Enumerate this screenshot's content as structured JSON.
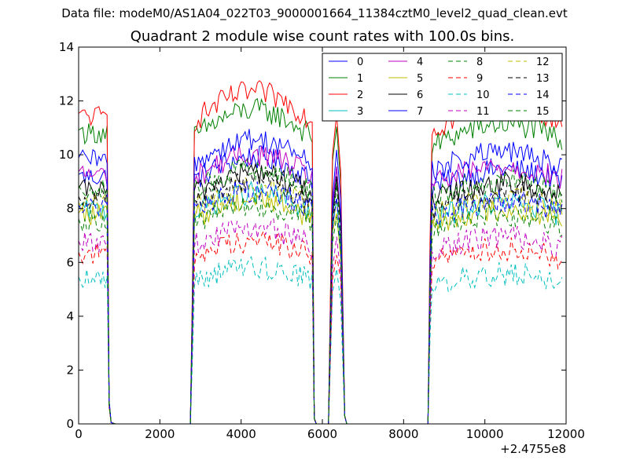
{
  "figure": {
    "suptitle": "Data file: modeM0/AS1A04_022T03_9000001664_11384cztM0_level2_quad_clean.evt"
  },
  "chart_data": {
    "type": "line",
    "title": "Quadrant 2 module wise count rates with 100.0s bins.",
    "xlabel": "",
    "ylabel": "",
    "x_offset_label": "+2.4755e8",
    "xlim": [
      0,
      12000
    ],
    "ylim": [
      0,
      14
    ],
    "xticks": [
      0,
      2000,
      4000,
      6000,
      8000,
      10000,
      12000
    ],
    "yticks": [
      0,
      2,
      4,
      6,
      8,
      10,
      12,
      14
    ],
    "grid": false,
    "legend_position": "top-right",
    "legend_columns": 4,
    "segments": [
      {
        "start": 0,
        "end": 800,
        "decay_to": 0.6
      },
      {
        "start": 2800,
        "end": 5800
      },
      {
        "start": 6200,
        "end": 6600
      },
      {
        "start": 8650,
        "end": 11900
      }
    ],
    "series": [
      {
        "name": "0",
        "color": "#0000ff",
        "dash": "solid",
        "level": 9.0
      },
      {
        "name": "1",
        "color": "#008000",
        "dash": "solid",
        "level": 10.6
      },
      {
        "name": "2",
        "color": "#ff0000",
        "dash": "solid",
        "level": 11.2
      },
      {
        "name": "3",
        "color": "#00bfbf",
        "dash": "solid",
        "level": 7.8
      },
      {
        "name": "4",
        "color": "#bf00bf",
        "dash": "solid",
        "level": 9.1
      },
      {
        "name": "5",
        "color": "#bfbf00",
        "dash": "solid",
        "level": 7.6
      },
      {
        "name": "6",
        "color": "#000000",
        "dash": "solid",
        "level": 8.5
      },
      {
        "name": "7",
        "color": "#0000ff",
        "dash": "solid",
        "level": 9.6
      },
      {
        "name": "8",
        "color": "#008000",
        "dash": "dashed",
        "level": 7.4
      },
      {
        "name": "9",
        "color": "#ff0000",
        "dash": "dashed",
        "level": 6.2
      },
      {
        "name": "10",
        "color": "#00bfbf",
        "dash": "dashed",
        "level": 5.3
      },
      {
        "name": "11",
        "color": "#bf00bf",
        "dash": "dashed",
        "level": 6.6
      },
      {
        "name": "12",
        "color": "#bfbf00",
        "dash": "dashed",
        "level": 8.0
      },
      {
        "name": "13",
        "color": "#000000",
        "dash": "dashed",
        "level": 8.2
      },
      {
        "name": "14",
        "color": "#0000ff",
        "dash": "dashed",
        "level": 7.9
      },
      {
        "name": "15",
        "color": "#008000",
        "dash": "dashed",
        "level": 8.6
      }
    ]
  }
}
